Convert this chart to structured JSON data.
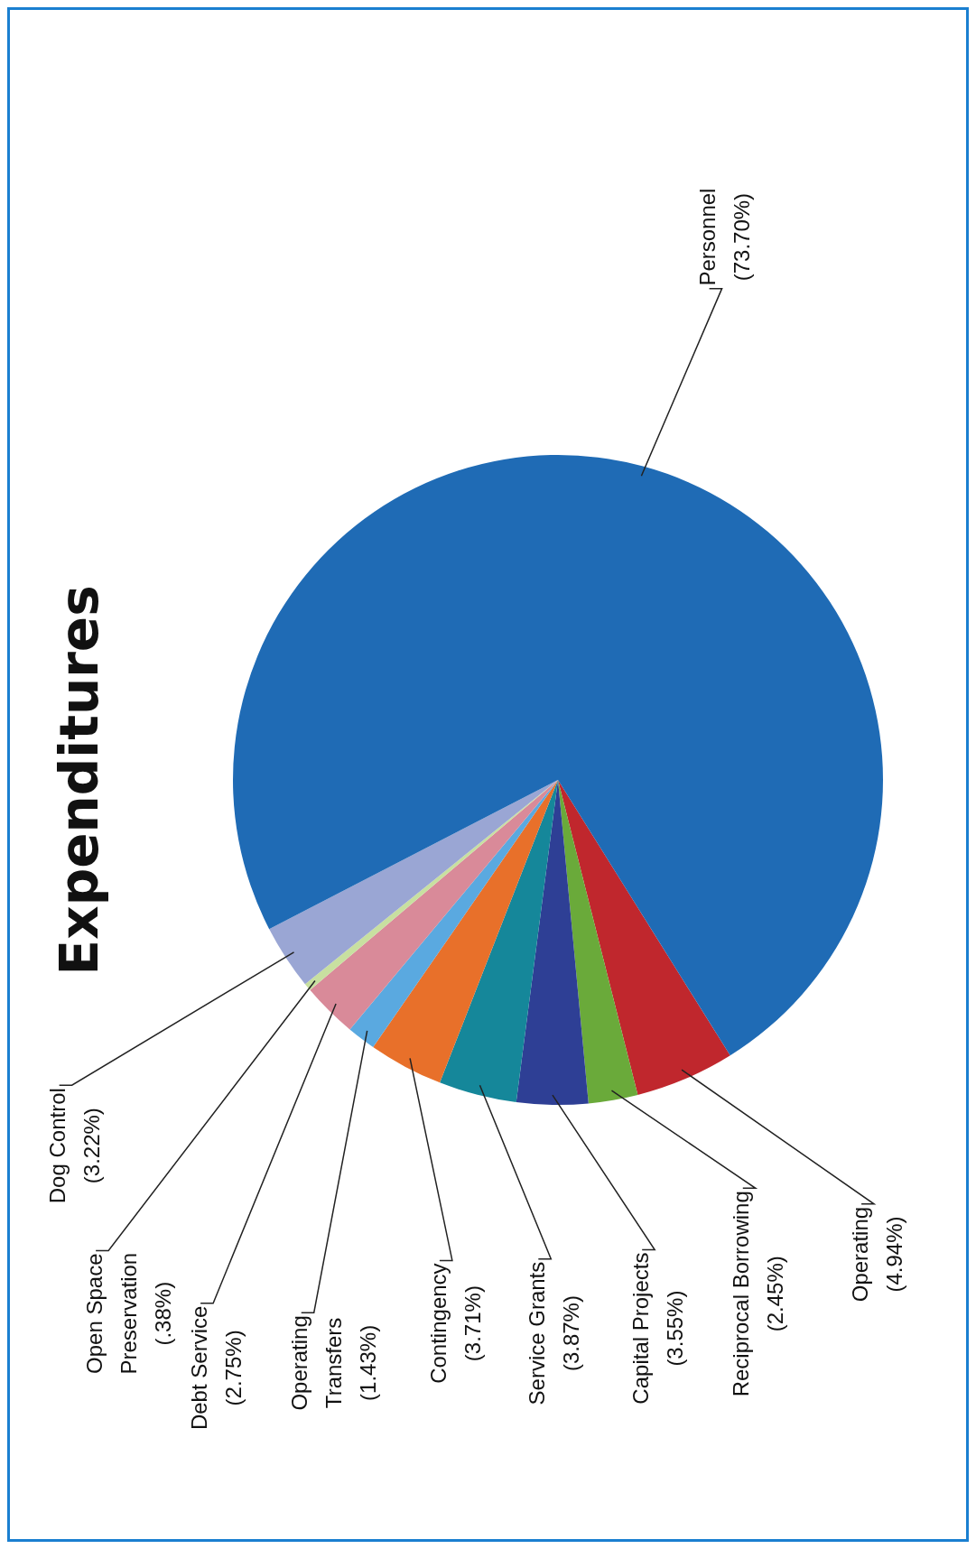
{
  "chart_data": {
    "type": "pie",
    "title": "Expenditures",
    "categories": [
      "Operating",
      "Reciprocal Borrowing",
      "Capital Projects",
      "Service Grants",
      "Contingency",
      "Operating Transfers",
      "Debt Service",
      "Open Space Preservation",
      "Dog Control",
      "Personnel"
    ],
    "values": [
      4.94,
      2.45,
      3.55,
      3.87,
      3.71,
      1.43,
      2.75,
      0.38,
      3.22,
      73.7
    ],
    "value_labels": [
      "(4.94%)",
      "(2.45%)",
      "(3.55%)",
      "(3.87%)",
      "(3.71%)",
      "(1.43%)",
      "(2.75%)",
      "(.38%)",
      "(3.22%)",
      "(73.70%)"
    ],
    "colors": [
      "#c0272d",
      "#6aaa3a",
      "#2e3f95",
      "#15879a",
      "#e8702a",
      "#5aa9e0",
      "#d98a99",
      "#c8e0a0",
      "#9aa6d4",
      "#1f6bb5"
    ],
    "legend": false
  }
}
